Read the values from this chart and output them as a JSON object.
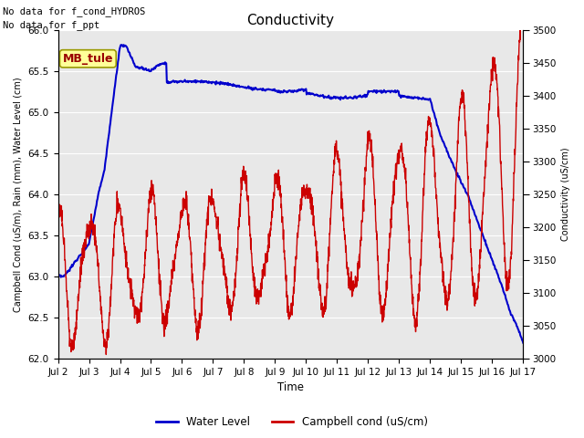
{
  "title": "Conductivity",
  "xlabel": "Time",
  "ylabel_left": "Campbell Cond (uS/m), Rain (mm), Water Level (cm)",
  "ylabel_right": "Conductivity (uS/cm)",
  "annotation_line1": "No data for f_cond_HYDROS",
  "annotation_line2": "No data for f_ppt",
  "box_label": "MB_tule",
  "ylim_left": [
    62.0,
    66.0
  ],
  "ylim_right": [
    3000,
    3500
  ],
  "yticks_left": [
    62.0,
    62.5,
    63.0,
    63.5,
    64.0,
    64.5,
    65.0,
    65.5,
    66.0
  ],
  "yticks_right": [
    3000,
    3050,
    3100,
    3150,
    3200,
    3250,
    3300,
    3350,
    3400,
    3450,
    3500
  ],
  "xtick_labels": [
    "Jul 2",
    "Jul 3",
    "Jul 4",
    "Jul 5",
    "Jul 6",
    "Jul 7",
    "Jul 8",
    "Jul 9",
    "Jul 10",
    "Jul 11",
    "Jul 12",
    "Jul 13",
    "Jul 14",
    "Jul 15",
    "Jul 16",
    "Jul 17"
  ],
  "background_color": "#e8e8e8",
  "grid_color": "#ffffff",
  "water_level_color": "#0000cc",
  "campbell_color": "#cc0000",
  "legend_water": "Water Level",
  "legend_campbell": "Campbell cond (uS/cm)",
  "figsize": [
    6.4,
    4.8
  ],
  "dpi": 100
}
